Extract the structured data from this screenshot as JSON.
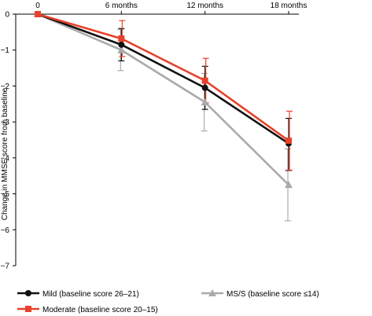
{
  "chart_data": {
    "type": "line",
    "title": "",
    "xlabel": "",
    "ylabel": "Change in MMSE score from baseline",
    "x": [
      0,
      6,
      12,
      18
    ],
    "x_tick_labels": [
      "0",
      "6 months",
      "12 months",
      "18 months"
    ],
    "x_tick_position": "top",
    "ylim": [
      -7,
      0
    ],
    "y_ticks": [
      0,
      -1,
      -2,
      -3,
      -4,
      -5,
      -6,
      -7
    ],
    "y_tick_labels": [
      "0",
      "−1",
      "−2",
      "−3",
      "−4",
      "−5",
      "−6",
      "−7"
    ],
    "grid": false,
    "legend_position": "bottom",
    "series": [
      {
        "name": "Mild (baseline score 26–21)",
        "color": "#111111",
        "marker": "circle",
        "values": [
          0,
          -0.85,
          -2.05,
          -3.6
        ],
        "err_upper": [
          0,
          0.45,
          0.6,
          0.7
        ],
        "err_lower": [
          0,
          0.45,
          0.6,
          0.75
        ]
      },
      {
        "name": "Moderate (baseline score 20–15)",
        "color": "#e8412c",
        "marker": "square",
        "values": [
          0,
          -0.68,
          -1.85,
          -3.52
        ],
        "err_upper": [
          0,
          0.5,
          0.62,
          0.82
        ],
        "err_lower": [
          0,
          0.5,
          0.62,
          0.82
        ]
      },
      {
        "name": "MS/S (baseline score ≤14)",
        "color": "#aaaaaa",
        "marker": "triangle",
        "values": [
          0,
          -1.0,
          -2.45,
          -4.75
        ],
        "err_upper": [
          0,
          0.57,
          0.8,
          1.0
        ],
        "err_lower": [
          0,
          0.57,
          0.8,
          1.0
        ]
      }
    ]
  }
}
